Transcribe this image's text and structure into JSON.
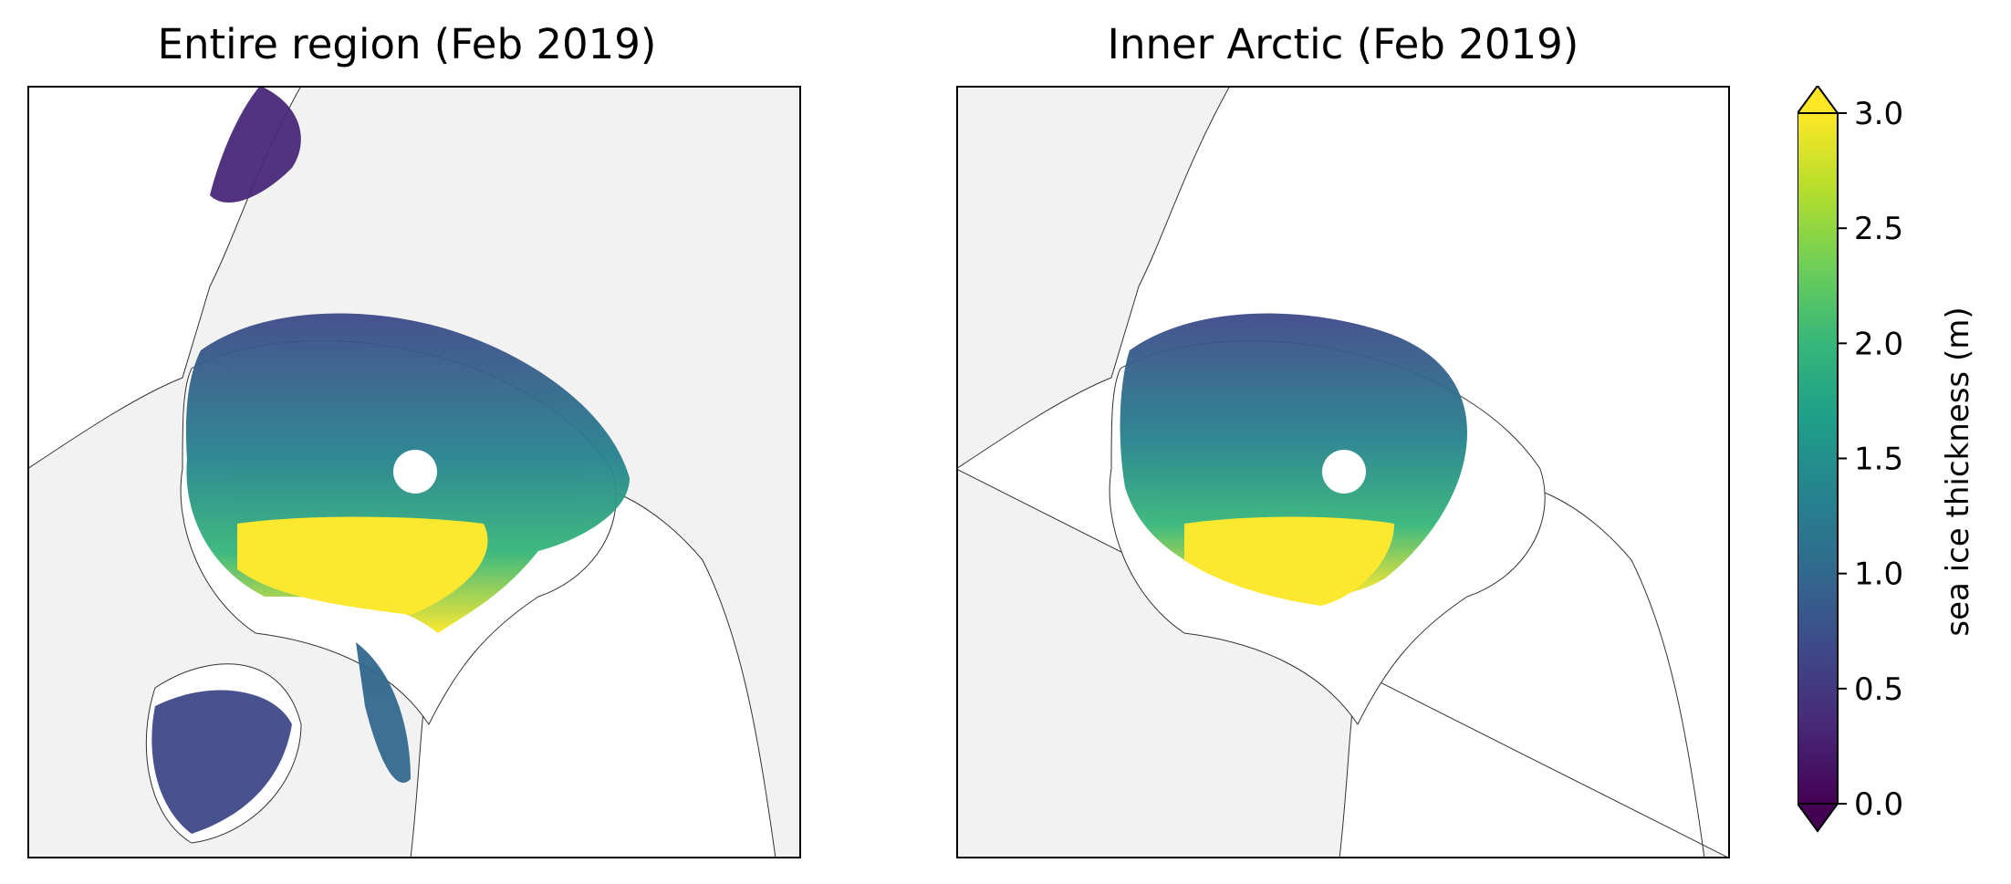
{
  "panels": [
    {
      "title": "Entire region (Feb 2019)"
    },
    {
      "title": "Inner Arctic (Feb 2019)"
    }
  ],
  "colors": {
    "land": "#f2f2f2",
    "ocean": "#ffffff",
    "coastline": "#333333",
    "viridis": [
      "#440154",
      "#482878",
      "#3e4989",
      "#31688e",
      "#26828e",
      "#1f9e89",
      "#35b779",
      "#6ece58",
      "#b5de2b",
      "#fde725"
    ]
  },
  "colorbar": {
    "label": "sea ice thickness (m)",
    "min": 0.0,
    "max": 3.0,
    "extend": "both",
    "ticks": [
      "0.0",
      "0.5",
      "1.0",
      "1.5",
      "2.0",
      "2.5",
      "3.0"
    ]
  }
}
